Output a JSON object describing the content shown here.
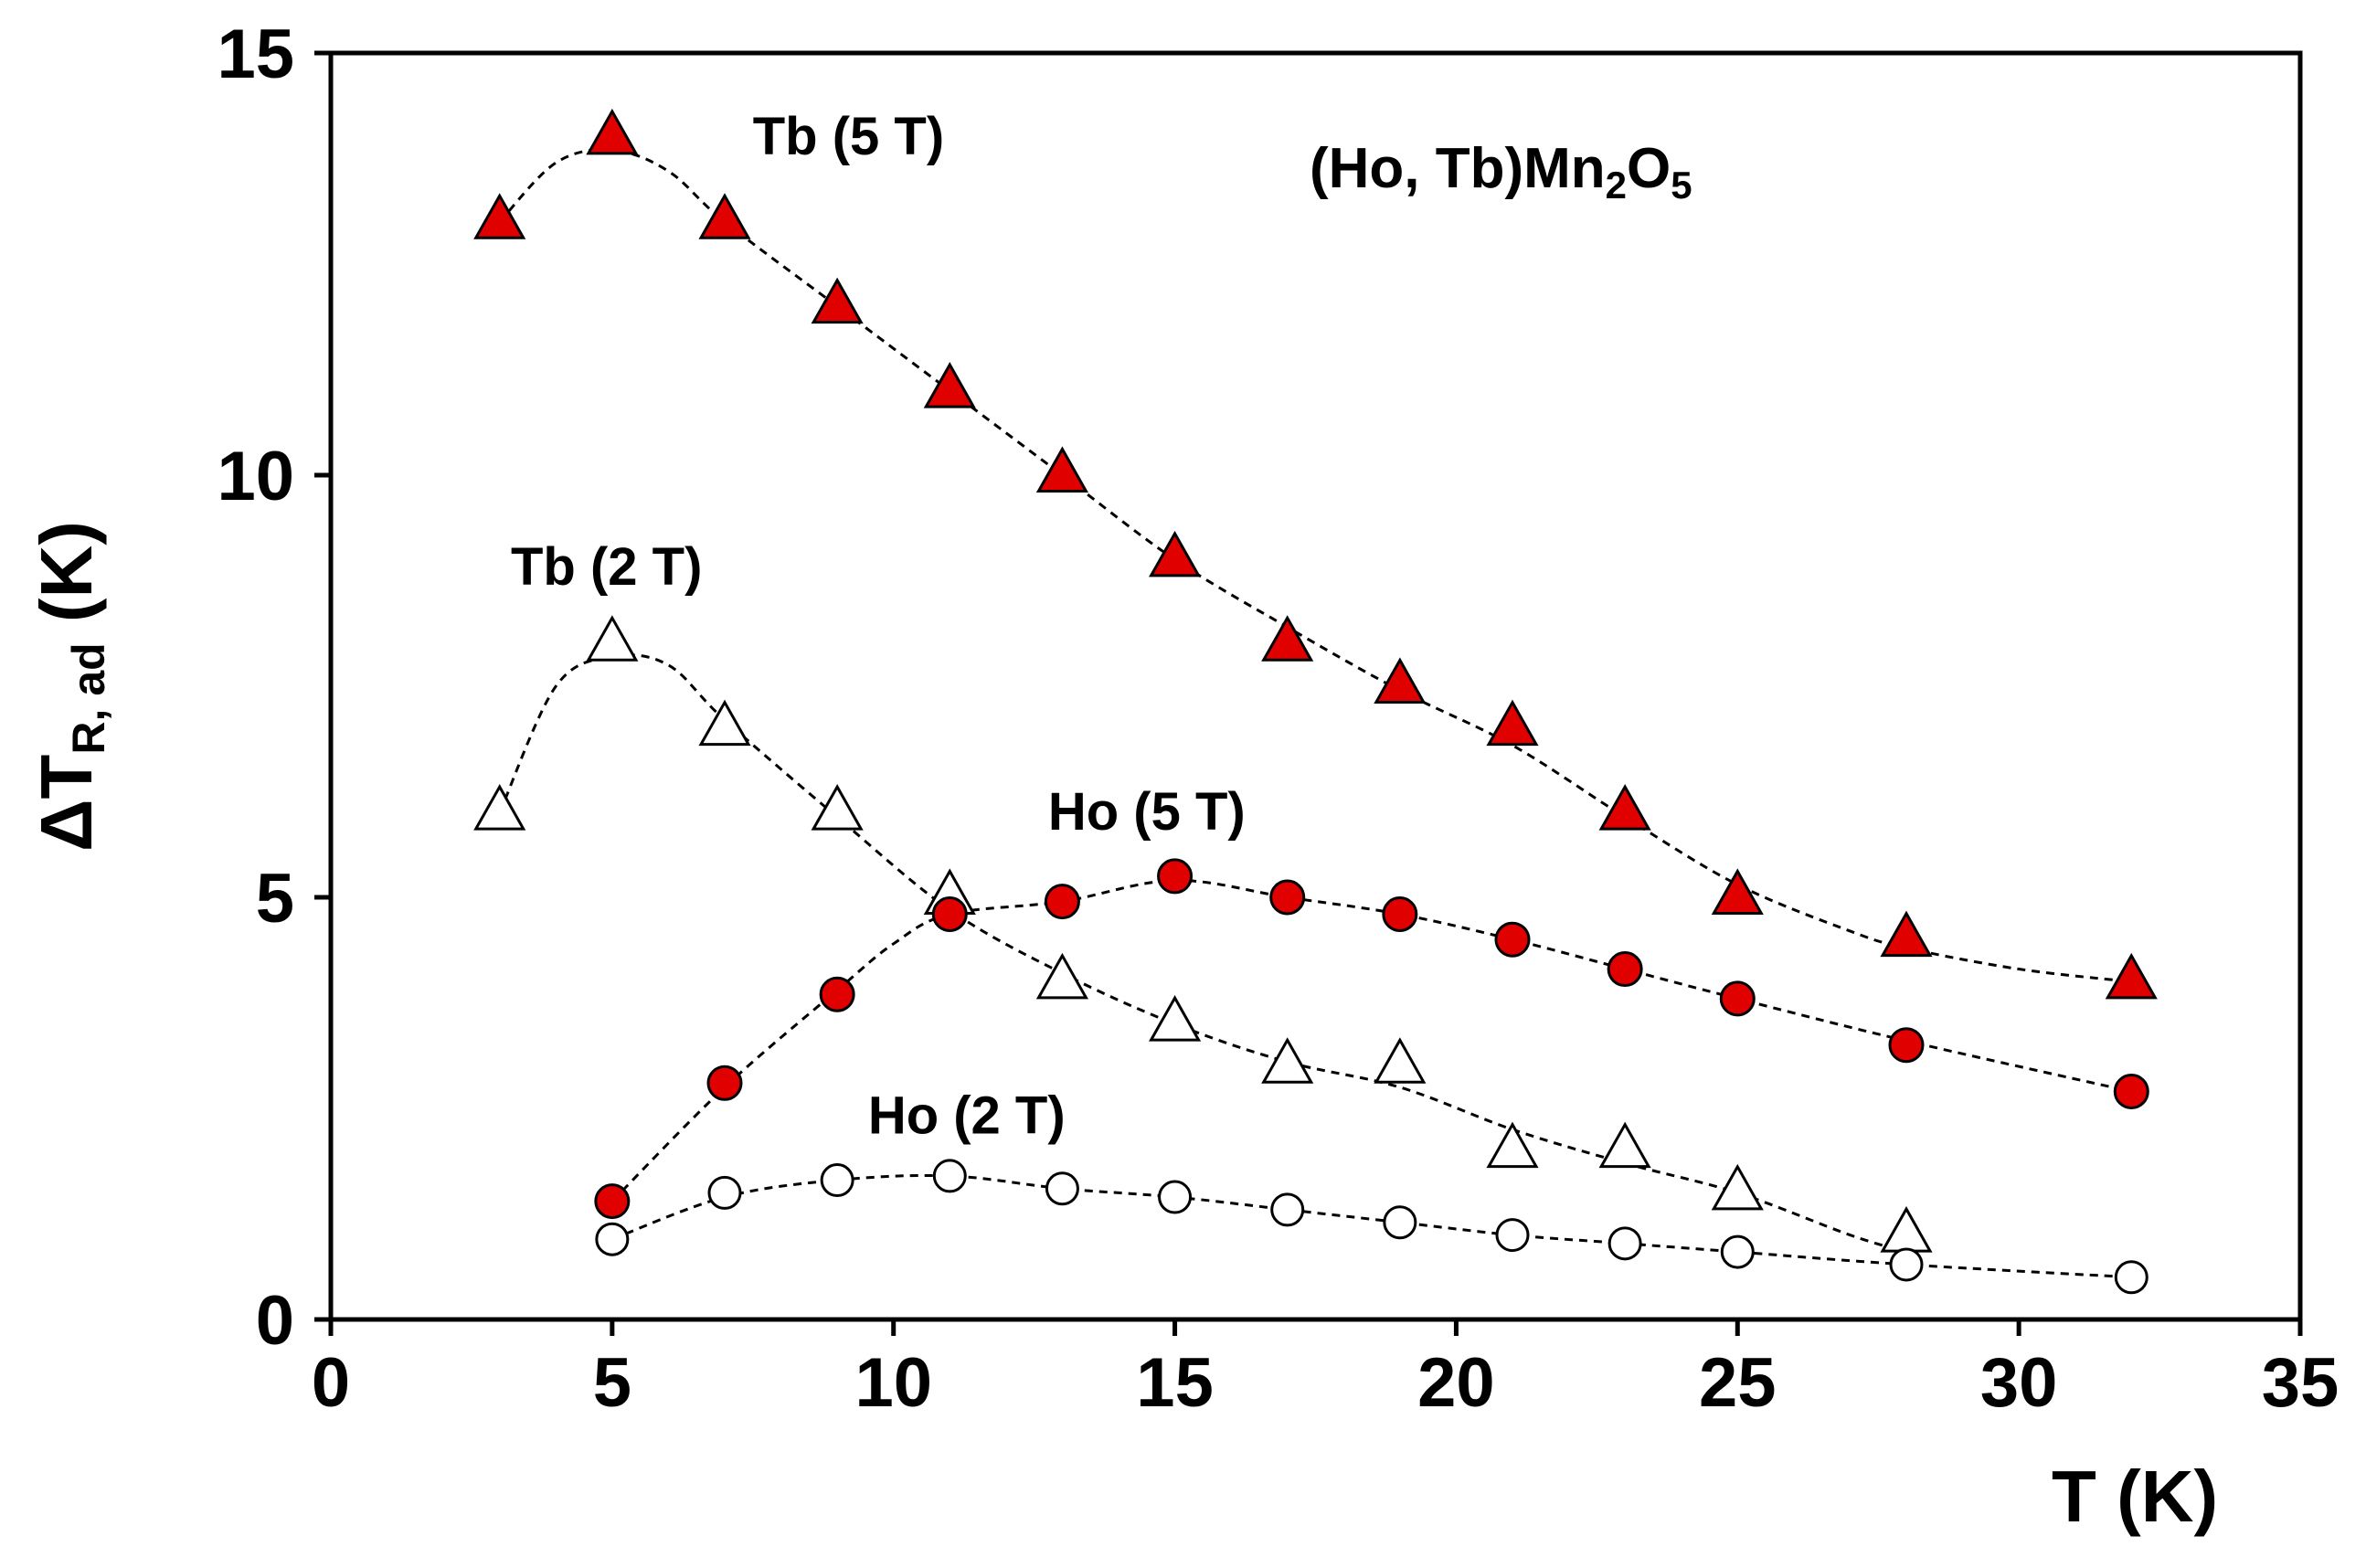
{
  "chart_data": {
    "type": "scatter",
    "title": "(Ho, Tb)Mn2O5",
    "title_parts": {
      "a": "(Ho, Tb)Mn",
      "sub1": "2",
      "b": "O",
      "sub2": "5"
    },
    "xlabel": "T (K)",
    "ylabel": "ΔT",
    "ylabel_sub": "R, ad",
    "ylabel_unit": " (K)",
    "xlim": [
      0,
      35
    ],
    "ylim": [
      0,
      15
    ],
    "xticks": [
      0,
      5,
      10,
      15,
      20,
      25,
      30,
      35
    ],
    "yticks": [
      0,
      5,
      10,
      15
    ],
    "xtick_labels": [
      "0",
      "5",
      "10",
      "15",
      "20",
      "25",
      "30",
      "35"
    ],
    "ytick_labels": [
      "0",
      "5",
      "10",
      "15"
    ],
    "grid": false,
    "series": [
      {
        "name": "Tb (5 T)",
        "marker": "triangle",
        "fill": "#e00000",
        "x": [
          3,
          5,
          7,
          9,
          11,
          13,
          15,
          17,
          19,
          21,
          23,
          25,
          28,
          32
        ],
        "y": [
          13.0,
          14.0,
          13.0,
          12.0,
          11.0,
          10.0,
          9.0,
          8.0,
          7.5,
          7.0,
          6.0,
          5.0,
          4.5,
          4.0
        ],
        "fit": [
          [
            3,
            13.0
          ],
          [
            4,
            13.7
          ],
          [
            5,
            13.85
          ],
          [
            6,
            13.6
          ],
          [
            7,
            13.0
          ],
          [
            9,
            12.0
          ],
          [
            11,
            11.0
          ],
          [
            13,
            10.0
          ],
          [
            15,
            9.0
          ],
          [
            17,
            8.2
          ],
          [
            19,
            7.45
          ],
          [
            21,
            6.8
          ],
          [
            23,
            5.95
          ],
          [
            25,
            5.15
          ],
          [
            27,
            4.6
          ],
          [
            28,
            4.4
          ],
          [
            30,
            4.15
          ],
          [
            32,
            4.0
          ]
        ]
      },
      {
        "name": "Tb (2 T)",
        "marker": "triangle",
        "fill": "#ffffff",
        "x": [
          3,
          5,
          7,
          9,
          11,
          13,
          15,
          17,
          19,
          21,
          23,
          25,
          28
        ],
        "y": [
          6.0,
          8.0,
          7.0,
          6.0,
          5.0,
          4.0,
          3.5,
          3.0,
          3.0,
          2.0,
          2.0,
          1.5,
          1.0
        ],
        "fit": [
          [
            3,
            6.0
          ],
          [
            4,
            7.5
          ],
          [
            5,
            7.85
          ],
          [
            6,
            7.75
          ],
          [
            7,
            7.1
          ],
          [
            9,
            5.95
          ],
          [
            11,
            4.85
          ],
          [
            13,
            4.1
          ],
          [
            15,
            3.5
          ],
          [
            17,
            3.05
          ],
          [
            19,
            2.75
          ],
          [
            21,
            2.25
          ],
          [
            23,
            1.85
          ],
          [
            25,
            1.5
          ],
          [
            27,
            1.0
          ],
          [
            28,
            0.8
          ]
        ]
      },
      {
        "name": "Ho (5 T)",
        "marker": "circle",
        "fill": "#e00000",
        "x": [
          5,
          7,
          9,
          11,
          13,
          15,
          17,
          19,
          21,
          23,
          25,
          28,
          32
        ],
        "y": [
          1.4,
          2.8,
          3.85,
          4.8,
          4.95,
          5.25,
          5.0,
          4.8,
          4.5,
          4.15,
          3.8,
          3.25,
          2.7
        ],
        "fit": [
          [
            5,
            1.4
          ],
          [
            7,
            2.75
          ],
          [
            9,
            3.9
          ],
          [
            10,
            4.45
          ],
          [
            11,
            4.8
          ],
          [
            13,
            4.95
          ],
          [
            15,
            5.2
          ],
          [
            17,
            5.0
          ],
          [
            19,
            4.8
          ],
          [
            21,
            4.5
          ],
          [
            23,
            4.15
          ],
          [
            25,
            3.8
          ],
          [
            28,
            3.3
          ],
          [
            32,
            2.7
          ]
        ]
      },
      {
        "name": "Ho (2 T)",
        "marker": "circle",
        "fill": "#ffffff",
        "x": [
          5,
          7,
          9,
          11,
          13,
          15,
          17,
          19,
          21,
          23,
          25,
          28,
          32
        ],
        "y": [
          0.95,
          1.5,
          1.65,
          1.7,
          1.55,
          1.45,
          1.3,
          1.15,
          1.0,
          0.9,
          0.8,
          0.65,
          0.5
        ],
        "fit": [
          [
            5,
            0.95
          ],
          [
            7,
            1.45
          ],
          [
            9,
            1.65
          ],
          [
            11,
            1.7
          ],
          [
            13,
            1.55
          ],
          [
            15,
            1.45
          ],
          [
            17,
            1.3
          ],
          [
            19,
            1.15
          ],
          [
            21,
            1.0
          ],
          [
            23,
            0.9
          ],
          [
            25,
            0.8
          ],
          [
            28,
            0.65
          ],
          [
            32,
            0.5
          ]
        ]
      }
    ],
    "annotations": [
      {
        "text": "Tb (5 T)",
        "x": 9.2,
        "y": 13.8
      },
      {
        "text": "Tb (2 T)",
        "x": 4.9,
        "y": 8.7
      },
      {
        "text": "Ho (5 T)",
        "x": 14.5,
        "y": 5.8
      },
      {
        "text": "Ho (2 T)",
        "x": 11.3,
        "y": 2.2
      }
    ]
  }
}
